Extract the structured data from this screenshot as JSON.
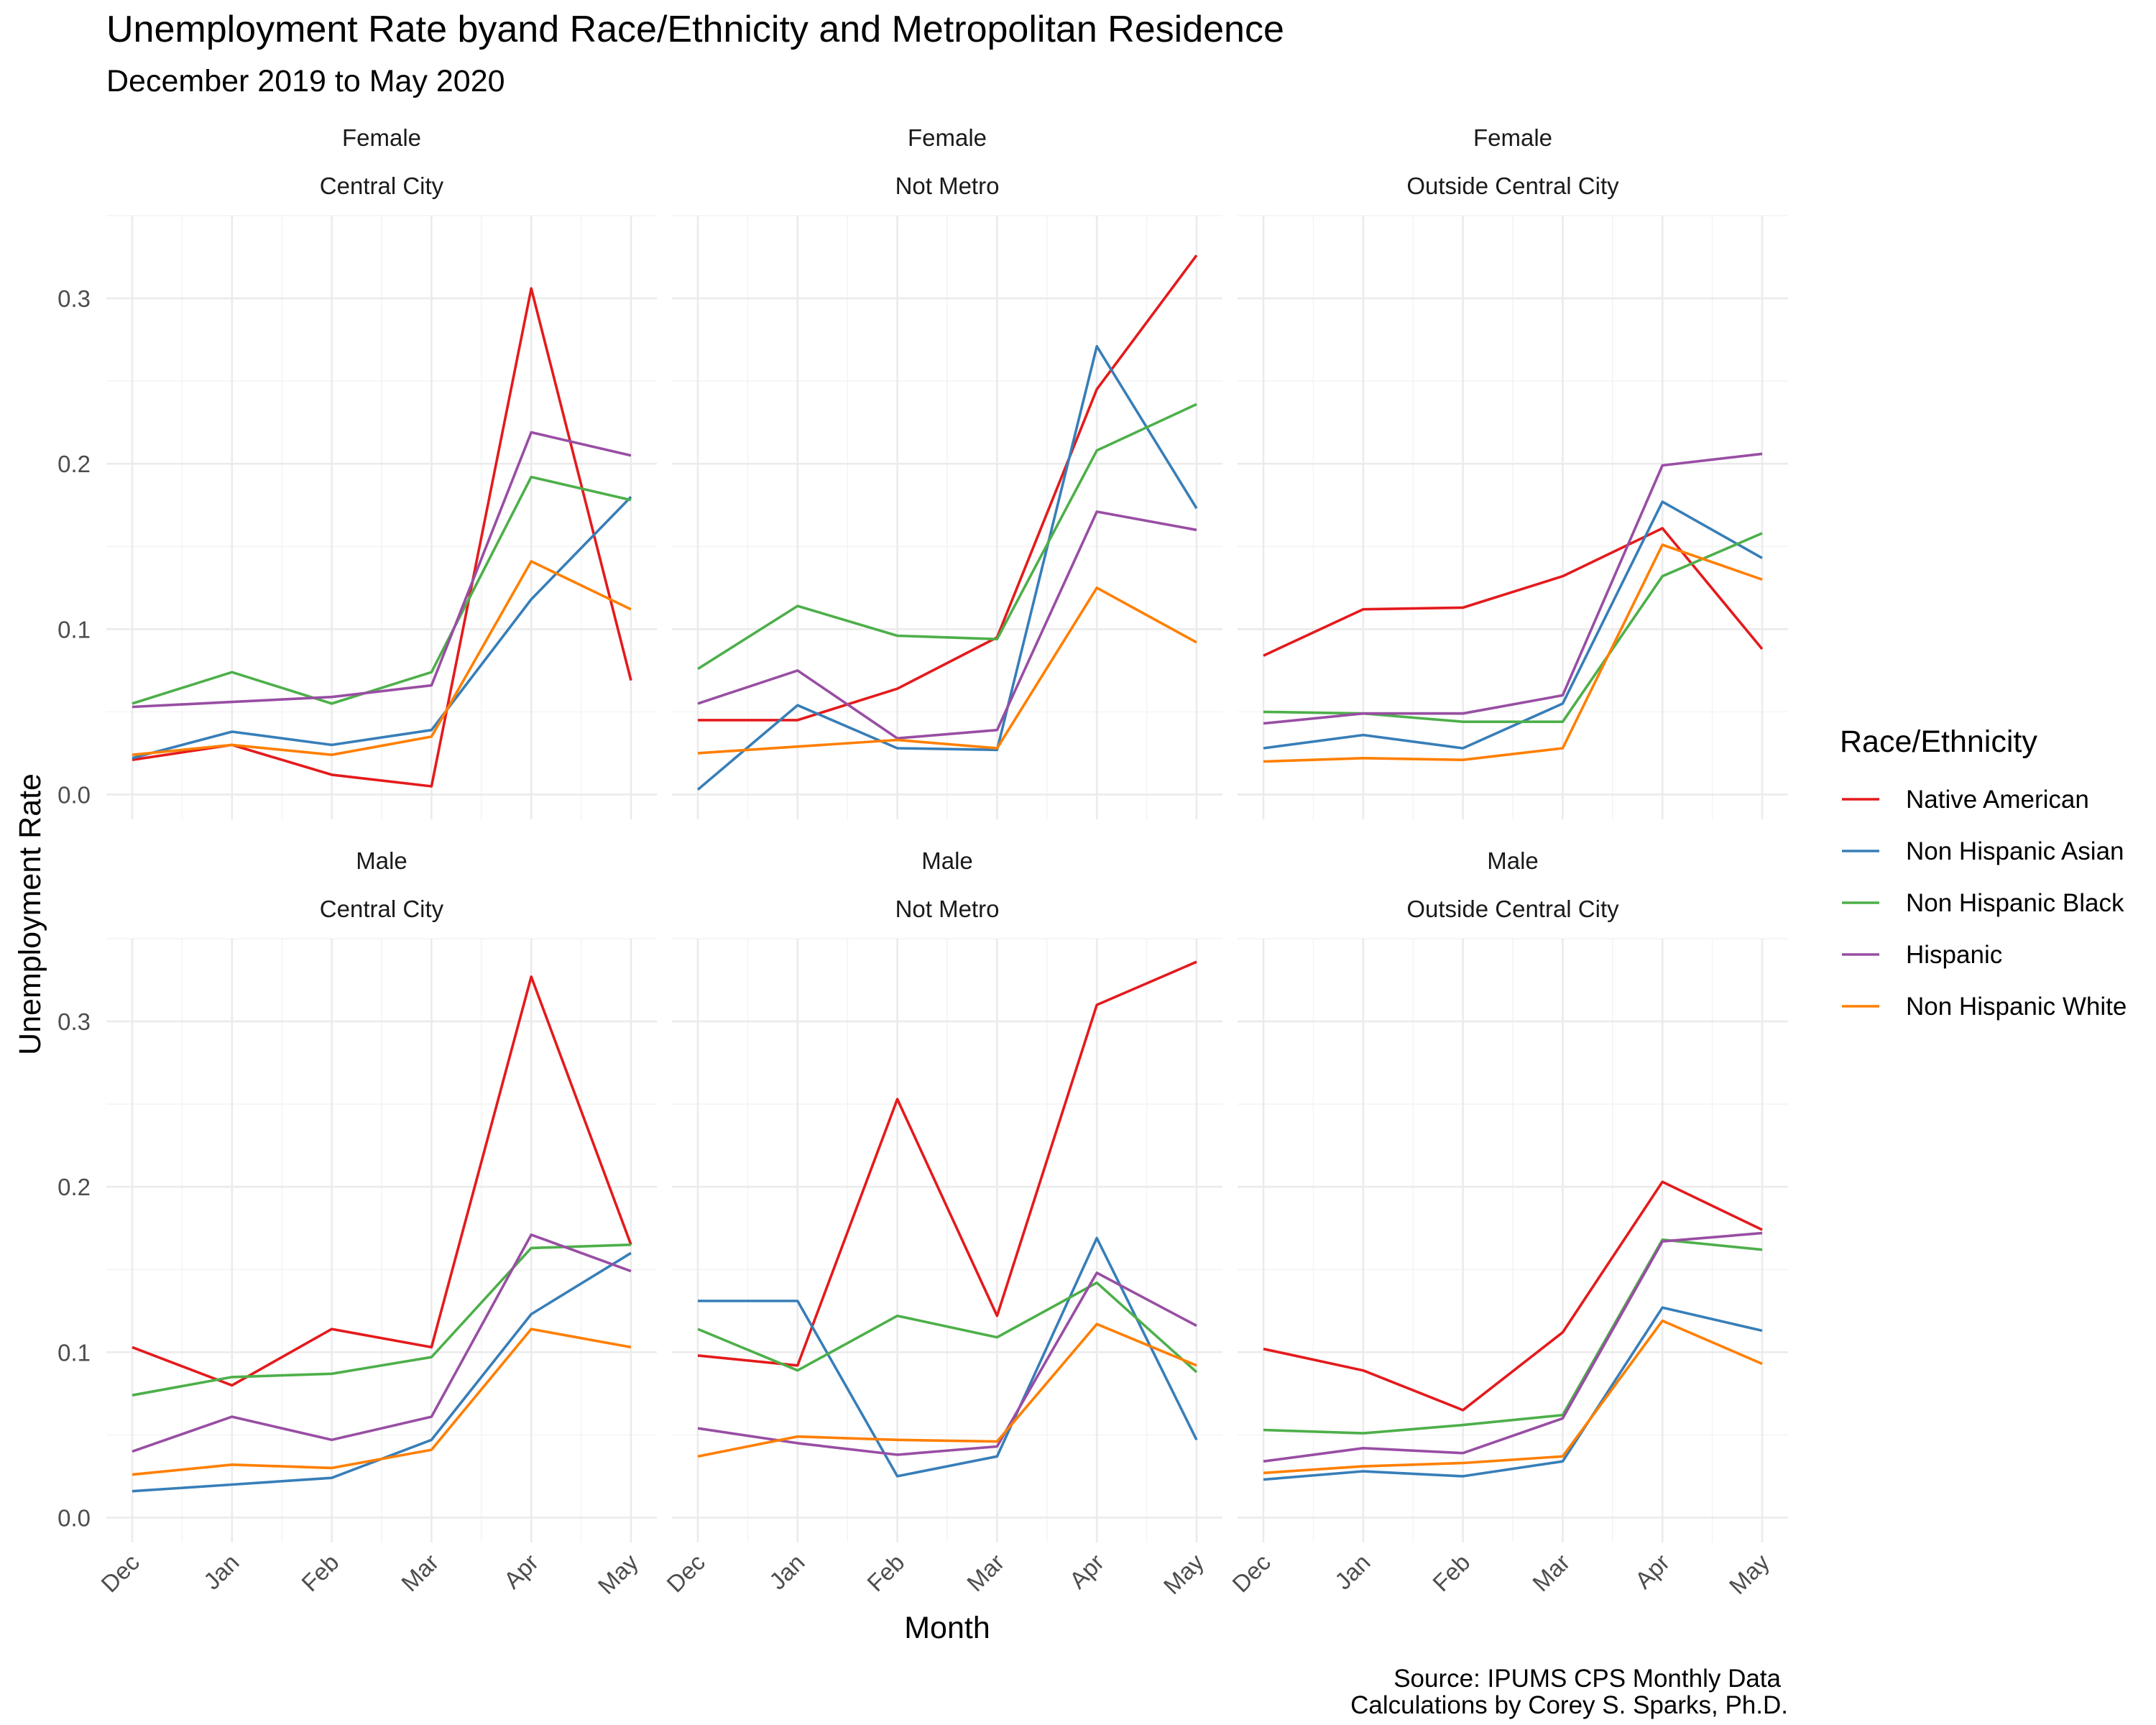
{
  "chart_data": {
    "type": "line",
    "title": "Unemployment Rate byand Race/Ethnicity and Metropolitan Residence",
    "subtitle": "December 2019 to May 2020",
    "xlabel": "Month",
    "ylabel": "Unemployment Rate",
    "caption": [
      "Source: IPUMS CPS Monthly Data",
      "Calculations by Corey S. Sparks, Ph.D."
    ],
    "categories": [
      "Dec",
      "Jan",
      "Feb",
      "Mar",
      "Apr",
      "May"
    ],
    "ylim": [
      -0.015,
      0.35
    ],
    "yticks": [
      0.0,
      0.1,
      0.2,
      0.3
    ],
    "ytick_labels": [
      "0.0",
      "0.1",
      "0.2",
      "0.3"
    ],
    "grid": true,
    "legend": {
      "title": "Race/Ethnicity",
      "position": "right",
      "entries": [
        {
          "name": "Native American",
          "color": "#e41a1c"
        },
        {
          "name": "Non Hispanic Asian",
          "color": "#377eb8"
        },
        {
          "name": "Non Hispanic Black",
          "color": "#4daf4a"
        },
        {
          "name": "Hispanic",
          "color": "#984ea3"
        },
        {
          "name": "Non Hispanic White",
          "color": "#ff7f00"
        }
      ]
    },
    "panels": [
      {
        "row": 0,
        "col": 0,
        "sex": "Female",
        "residence": "Central City",
        "series": [
          {
            "name": "Native American",
            "values": [
              0.021,
              0.03,
              0.012,
              0.005,
              0.306,
              0.069
            ]
          },
          {
            "name": "Non Hispanic Asian",
            "values": [
              0.022,
              0.038,
              0.03,
              0.039,
              0.118,
              0.18
            ]
          },
          {
            "name": "Non Hispanic Black",
            "values": [
              0.055,
              0.074,
              0.055,
              0.074,
              0.192,
              0.178
            ]
          },
          {
            "name": "Hispanic",
            "values": [
              0.053,
              0.056,
              0.059,
              0.066,
              0.219,
              0.205
            ]
          },
          {
            "name": "Non Hispanic White",
            "values": [
              0.024,
              0.03,
              0.024,
              0.035,
              0.141,
              0.112
            ]
          }
        ]
      },
      {
        "row": 0,
        "col": 1,
        "sex": "Female",
        "residence": "Not Metro",
        "series": [
          {
            "name": "Native American",
            "values": [
              0.045,
              0.045,
              0.064,
              0.095,
              0.245,
              0.326
            ]
          },
          {
            "name": "Non Hispanic Asian",
            "values": [
              0.003,
              0.054,
              0.028,
              0.027,
              0.271,
              0.173
            ]
          },
          {
            "name": "Non Hispanic Black",
            "values": [
              0.076,
              0.114,
              0.096,
              0.094,
              0.208,
              0.236
            ]
          },
          {
            "name": "Hispanic",
            "values": [
              0.055,
              0.075,
              0.034,
              0.039,
              0.171,
              0.16
            ]
          },
          {
            "name": "Non Hispanic White",
            "values": [
              0.025,
              0.029,
              0.033,
              0.028,
              0.125,
              0.092
            ]
          }
        ]
      },
      {
        "row": 0,
        "col": 2,
        "sex": "Female",
        "residence": "Outside Central City",
        "series": [
          {
            "name": "Native American",
            "values": [
              0.084,
              0.112,
              0.113,
              0.132,
              0.161,
              0.088
            ]
          },
          {
            "name": "Non Hispanic Asian",
            "values": [
              0.028,
              0.036,
              0.028,
              0.055,
              0.177,
              0.143
            ]
          },
          {
            "name": "Non Hispanic Black",
            "values": [
              0.05,
              0.049,
              0.044,
              0.044,
              0.132,
              0.158
            ]
          },
          {
            "name": "Hispanic",
            "values": [
              0.043,
              0.049,
              0.049,
              0.06,
              0.199,
              0.206
            ]
          },
          {
            "name": "Non Hispanic White",
            "values": [
              0.02,
              0.022,
              0.021,
              0.028,
              0.151,
              0.13
            ]
          }
        ]
      },
      {
        "row": 1,
        "col": 0,
        "sex": "Male",
        "residence": "Central City",
        "series": [
          {
            "name": "Native American",
            "values": [
              0.103,
              0.08,
              0.114,
              0.103,
              0.327,
              0.165
            ]
          },
          {
            "name": "Non Hispanic Asian",
            "values": [
              0.016,
              0.02,
              0.024,
              0.047,
              0.123,
              0.16
            ]
          },
          {
            "name": "Non Hispanic Black",
            "values": [
              0.074,
              0.085,
              0.087,
              0.097,
              0.163,
              0.165
            ]
          },
          {
            "name": "Hispanic",
            "values": [
              0.04,
              0.061,
              0.047,
              0.061,
              0.171,
              0.149
            ]
          },
          {
            "name": "Non Hispanic White",
            "values": [
              0.026,
              0.032,
              0.03,
              0.041,
              0.114,
              0.103
            ]
          }
        ]
      },
      {
        "row": 1,
        "col": 1,
        "sex": "Male",
        "residence": "Not Metro",
        "series": [
          {
            "name": "Native American",
            "values": [
              0.098,
              0.092,
              0.253,
              0.122,
              0.31,
              0.336
            ]
          },
          {
            "name": "Non Hispanic Asian",
            "values": [
              0.131,
              0.131,
              0.025,
              0.037,
              0.169,
              0.047
            ]
          },
          {
            "name": "Non Hispanic Black",
            "values": [
              0.114,
              0.089,
              0.122,
              0.109,
              0.142,
              0.088
            ]
          },
          {
            "name": "Hispanic",
            "values": [
              0.054,
              0.045,
              0.038,
              0.043,
              0.148,
              0.116
            ]
          },
          {
            "name": "Non Hispanic White",
            "values": [
              0.037,
              0.049,
              0.047,
              0.046,
              0.117,
              0.092
            ]
          }
        ]
      },
      {
        "row": 1,
        "col": 2,
        "sex": "Male",
        "residence": "Outside Central City",
        "series": [
          {
            "name": "Native American",
            "values": [
              0.102,
              0.089,
              0.065,
              0.112,
              0.203,
              0.174
            ]
          },
          {
            "name": "Non Hispanic Asian",
            "values": [
              0.023,
              0.028,
              0.025,
              0.034,
              0.127,
              0.113
            ]
          },
          {
            "name": "Non Hispanic Black",
            "values": [
              0.053,
              0.051,
              0.056,
              0.062,
              0.168,
              0.162
            ]
          },
          {
            "name": "Hispanic",
            "values": [
              0.034,
              0.042,
              0.039,
              0.06,
              0.167,
              0.172
            ]
          },
          {
            "name": "Non Hispanic White",
            "values": [
              0.027,
              0.031,
              0.033,
              0.037,
              0.119,
              0.093
            ]
          }
        ]
      }
    ]
  }
}
